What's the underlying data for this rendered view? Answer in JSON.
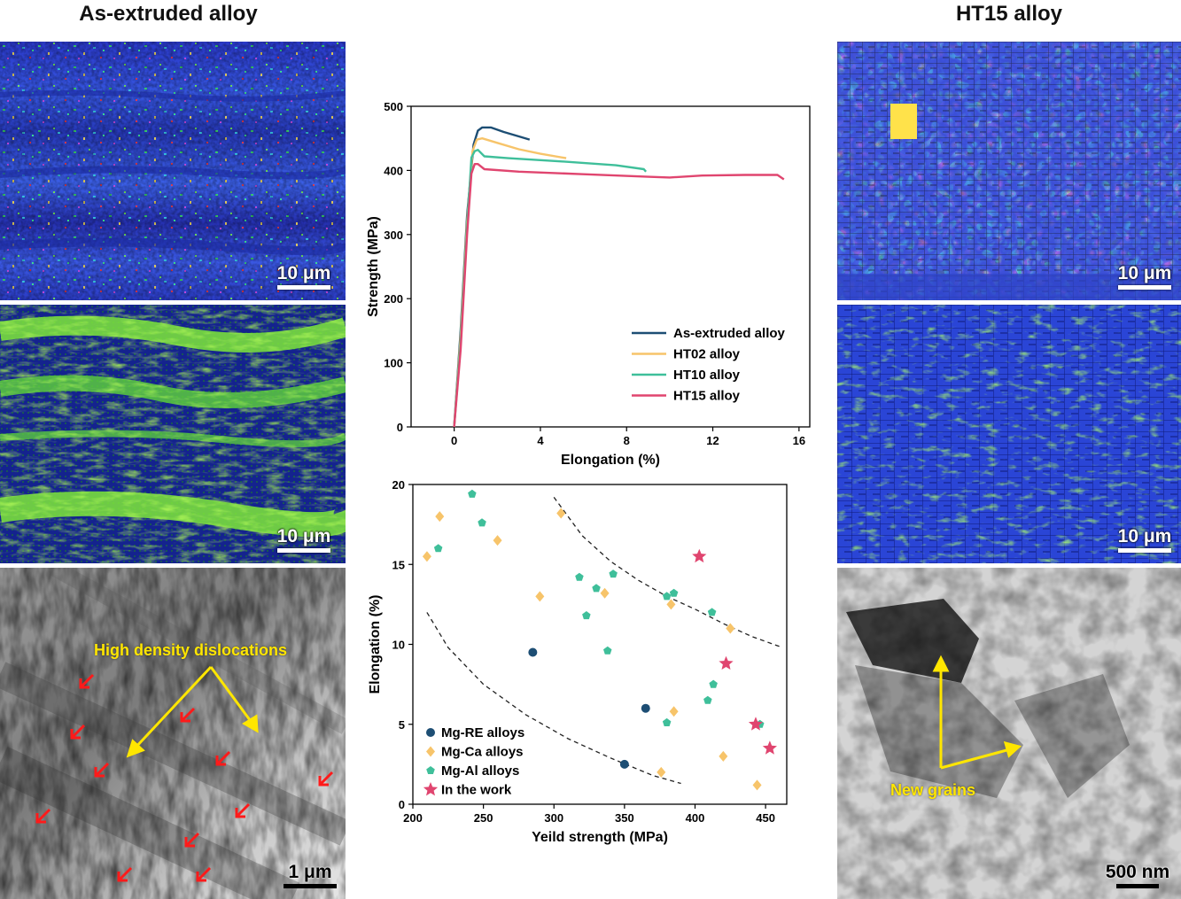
{
  "titles": {
    "left": "As-extruded alloy",
    "right": "HT15 alloy"
  },
  "colors": {
    "as_extruded": "#1d4e74",
    "ht02": "#f7c46a",
    "ht10": "#3fbf9a",
    "ht15": "#e0456f",
    "mg_re": "#1d4e74",
    "mg_ca": "#f7c46a",
    "mg_al": "#3fbf9a",
    "work": "#e0456f",
    "annotation": "#ffe600",
    "arrow_red": "#ff1a1a"
  },
  "left_panels": {
    "ebsd_scale": "10 μm",
    "kam_scale": "10 μm",
    "tem_scale": "1 μm",
    "tem_label": "High density dislocations"
  },
  "right_panels": {
    "ebsd_scale": "10 μm",
    "kam_scale": "10 μm",
    "tem_scale": "500 nm",
    "tem_label": "New grains"
  },
  "chart_data": [
    {
      "type": "line",
      "title": "",
      "xlabel": "Elongation (%)",
      "ylabel": "Strength (MPa)",
      "xlim": [
        -2,
        16.5
      ],
      "ylim": [
        0,
        500
      ],
      "xticks": [
        0,
        4,
        8,
        12,
        16
      ],
      "yticks": [
        0,
        100,
        200,
        300,
        400,
        500
      ],
      "legend": "bottom-right",
      "series": [
        {
          "name": "As-extruded alloy",
          "color": "#1d4e74",
          "points": [
            [
              0,
              0
            ],
            [
              0.3,
              150
            ],
            [
              0.6,
              330
            ],
            [
              0.9,
              440
            ],
            [
              1.1,
              462
            ],
            [
              1.3,
              467
            ],
            [
              1.7,
              467
            ],
            [
              2.3,
              460
            ],
            [
              3.0,
              453
            ],
            [
              3.5,
              448
            ]
          ]
        },
        {
          "name": "HT02 alloy",
          "color": "#f7c46a",
          "points": [
            [
              0,
              0
            ],
            [
              0.3,
              140
            ],
            [
              0.6,
              320
            ],
            [
              0.85,
              430
            ],
            [
              1.05,
              448
            ],
            [
              1.3,
              450
            ],
            [
              2.0,
              443
            ],
            [
              3.0,
              433
            ],
            [
              4.0,
              426
            ],
            [
              5.2,
              419
            ]
          ]
        },
        {
          "name": "HT10 alloy",
          "color": "#3fbf9a",
          "points": [
            [
              0,
              0
            ],
            [
              0.3,
              130
            ],
            [
              0.6,
              310
            ],
            [
              0.8,
              420
            ],
            [
              0.95,
              430
            ],
            [
              1.1,
              432
            ],
            [
              1.4,
              422
            ],
            [
              2.5,
              419
            ],
            [
              5.0,
              414
            ],
            [
              7.5,
              408
            ],
            [
              8.8,
              402
            ],
            [
              8.9,
              398
            ]
          ]
        },
        {
          "name": "HT15 alloy",
          "color": "#e0456f",
          "points": [
            [
              0,
              0
            ],
            [
              0.3,
              120
            ],
            [
              0.6,
              300
            ],
            [
              0.8,
              395
            ],
            [
              0.95,
              410
            ],
            [
              1.1,
              410
            ],
            [
              1.4,
              402
            ],
            [
              3.0,
              398
            ],
            [
              6.0,
              394
            ],
            [
              9.0,
              390
            ],
            [
              10.0,
              389
            ],
            [
              11.5,
              392
            ],
            [
              13.5,
              393
            ],
            [
              15.0,
              393
            ],
            [
              15.3,
              386
            ]
          ]
        }
      ]
    },
    {
      "type": "scatter",
      "title": "",
      "xlabel": "Yeild strength (MPa)",
      "ylabel": "Elongation (%)",
      "xlim": [
        200,
        465
      ],
      "ylim": [
        0,
        20
      ],
      "xticks": [
        200,
        250,
        300,
        350,
        400,
        450
      ],
      "yticks": [
        0,
        5,
        10,
        15,
        20
      ],
      "legend": "bottom-left",
      "series": [
        {
          "name": "Mg-RE alloys",
          "marker": "circle",
          "color": "#1d4e74",
          "points": [
            [
              285,
              9.5
            ],
            [
              365,
              6.0
            ],
            [
              350,
              2.5
            ]
          ]
        },
        {
          "name": "Mg-Ca alloys",
          "marker": "diamond",
          "color": "#f7c46a",
          "points": [
            [
              210,
              15.5
            ],
            [
              219,
              18.0
            ],
            [
              260,
              16.5
            ],
            [
              290,
              13.0
            ],
            [
              305,
              18.2
            ],
            [
              336,
              13.2
            ],
            [
              383,
              12.5
            ],
            [
              385,
              5.8
            ],
            [
              376,
              2.0
            ],
            [
              420,
              3.0
            ],
            [
              425,
              11.0
            ],
            [
              444,
              1.2
            ]
          ]
        },
        {
          "name": "Mg-Al alloys",
          "marker": "pentagon",
          "color": "#3fbf9a",
          "points": [
            [
              242,
              19.4
            ],
            [
              249,
              17.6
            ],
            [
              218,
              16.0
            ],
            [
              318,
              14.2
            ],
            [
              330,
              13.5
            ],
            [
              342,
              14.4
            ],
            [
              323,
              11.8
            ],
            [
              338,
              9.6
            ],
            [
              380,
              13.0
            ],
            [
              385,
              13.2
            ],
            [
              412,
              12.0
            ],
            [
              380,
              5.1
            ],
            [
              413,
              7.5
            ],
            [
              409,
              6.5
            ],
            [
              446,
              5.0
            ]
          ]
        },
        {
          "name": "In the work",
          "marker": "star",
          "color": "#e0456f",
          "points": [
            [
              403,
              15.5
            ],
            [
              422,
              8.8
            ],
            [
              443,
              5.0
            ],
            [
              453,
              3.5
            ]
          ]
        }
      ],
      "annotations": [
        "dashed-upper-boundary",
        "dashed-lower-boundary"
      ]
    }
  ]
}
